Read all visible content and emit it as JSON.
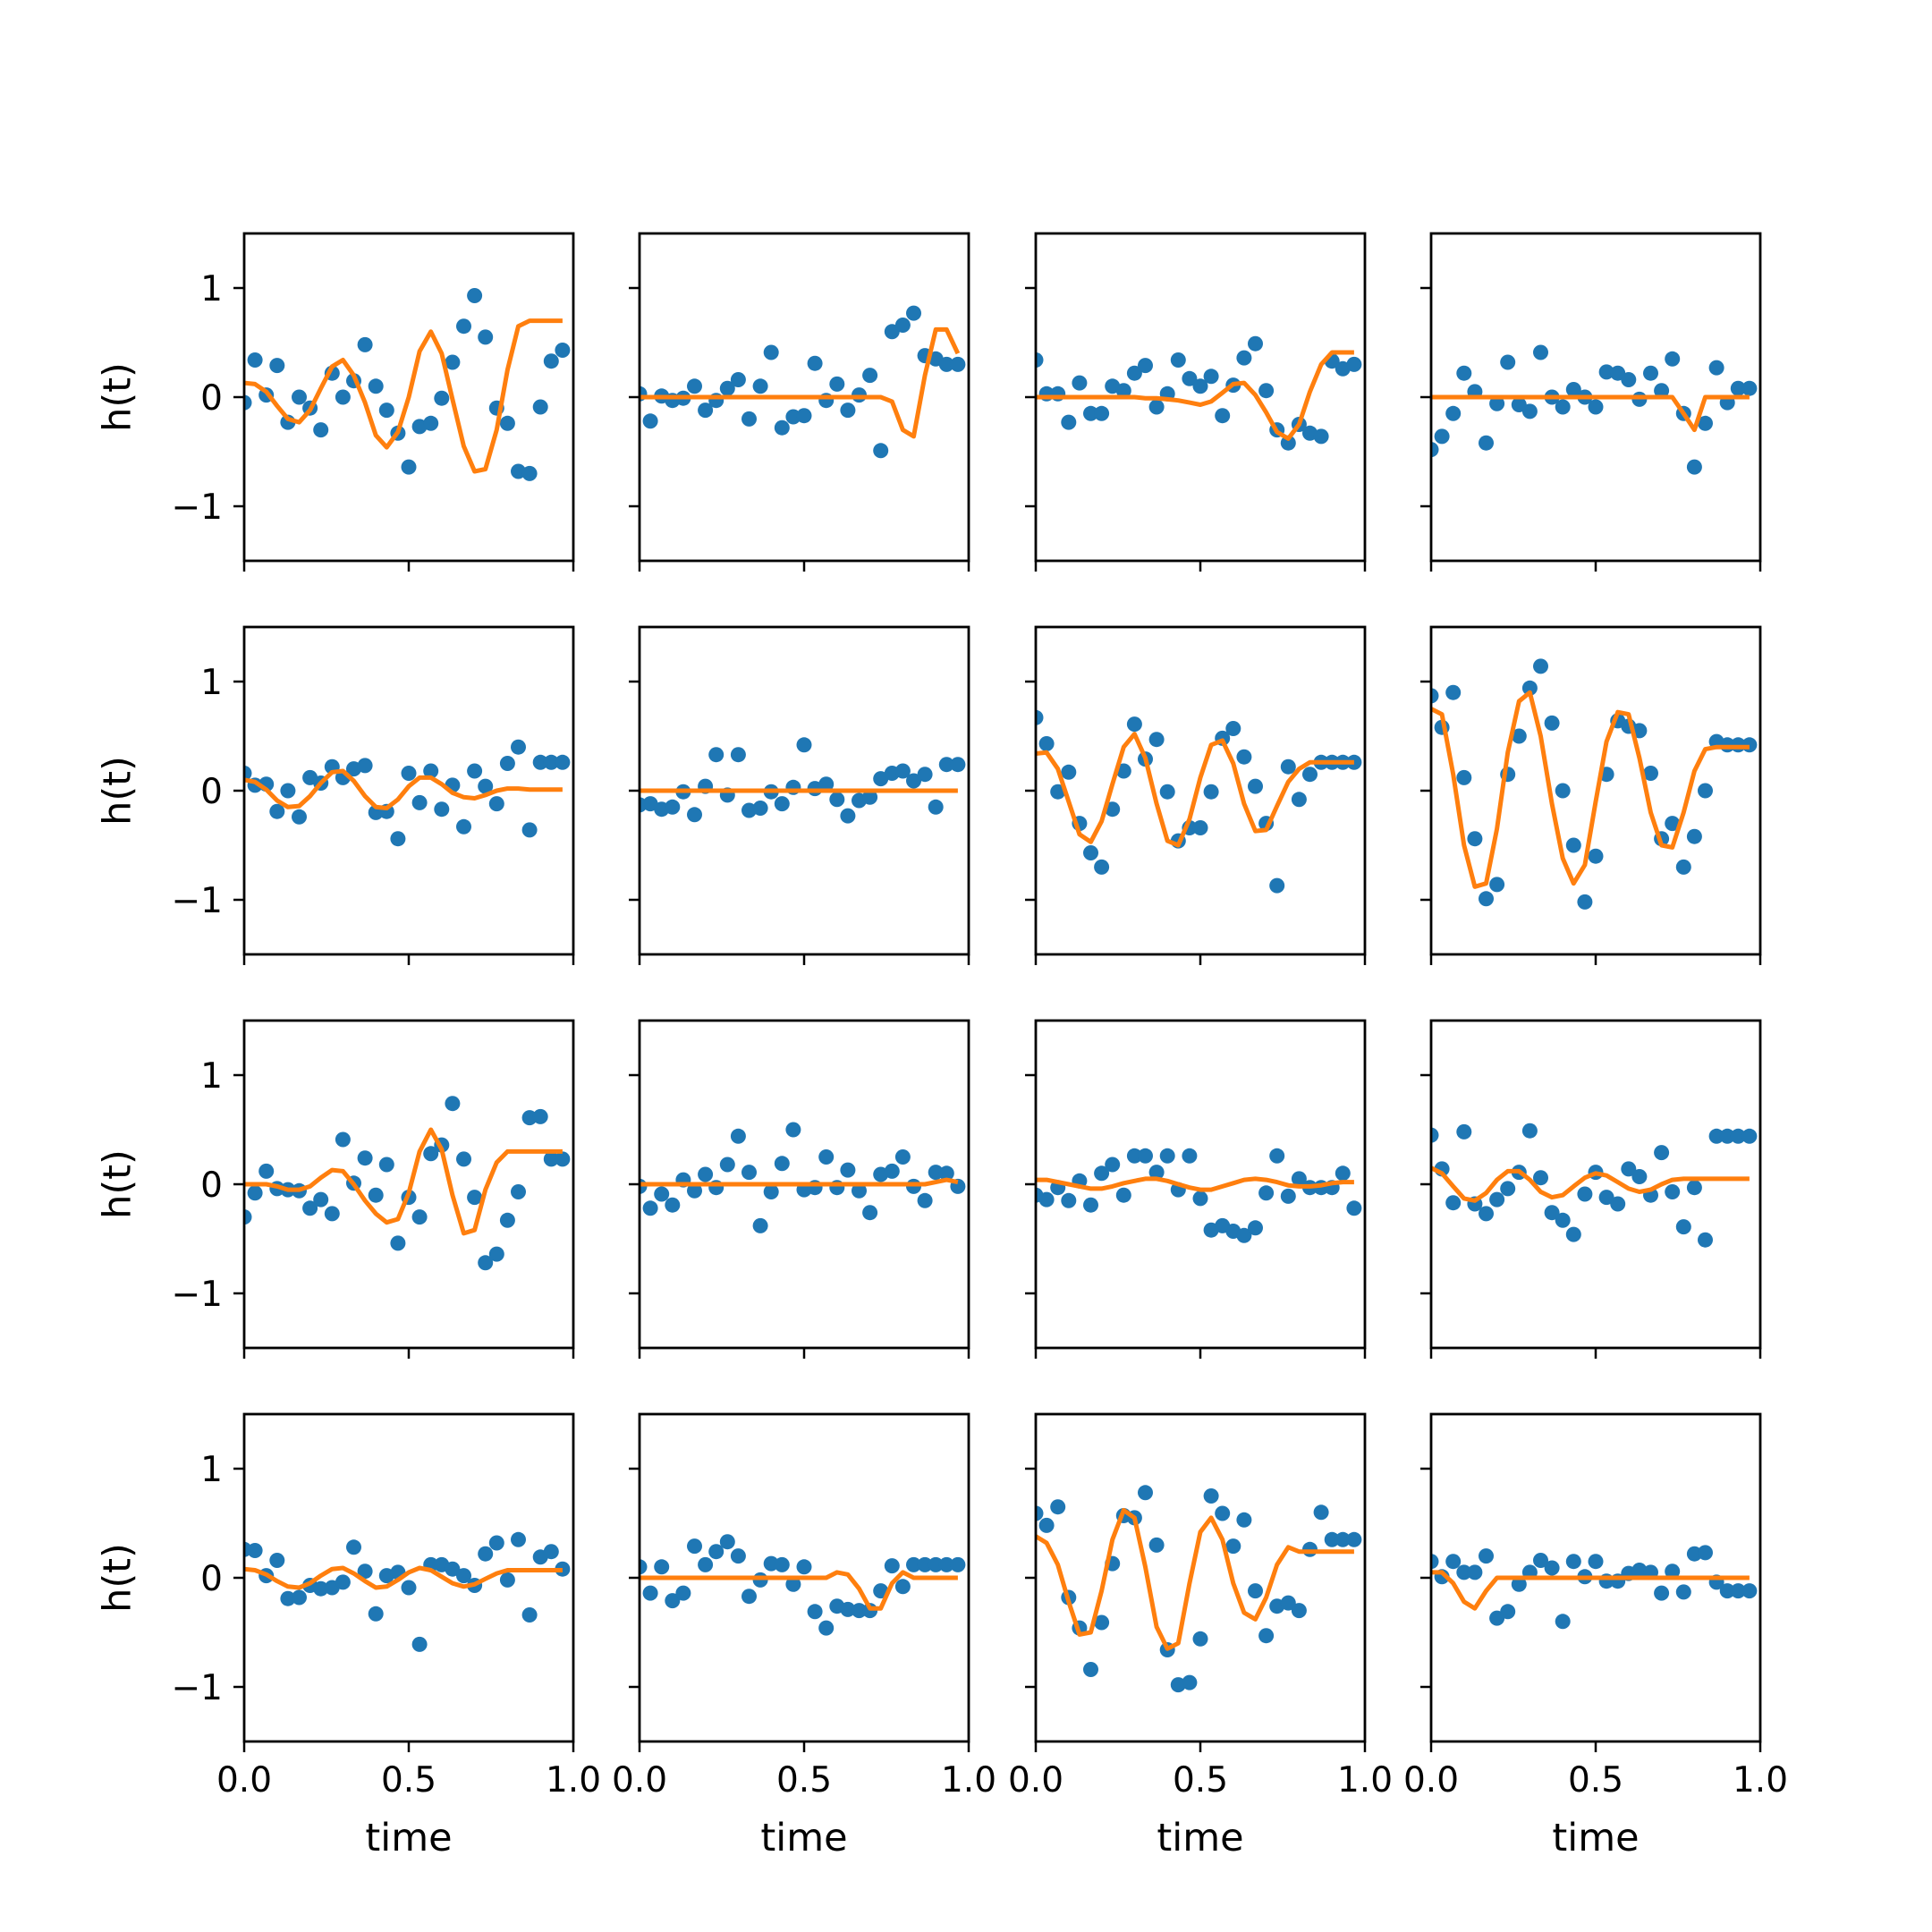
{
  "chart_data": {
    "type": "scatter",
    "layout": {
      "rows": 4,
      "cols": 4
    },
    "xlabel": "time",
    "ylabel": "h(t)",
    "xlim": [
      0.0,
      1.0
    ],
    "ylim": [
      -1.5,
      1.5
    ],
    "xticks": [
      0.0,
      0.5,
      1.0
    ],
    "xtick_labels": [
      "0.0",
      "0.5",
      "1.0"
    ],
    "yticks": [
      1,
      0,
      -1
    ],
    "ytick_labels": [
      "1",
      "0",
      "−1"
    ],
    "grid": false,
    "point_color": "#1f77b4",
    "line_color": "#ff7f0e",
    "x": [
      0.0,
      0.033,
      0.067,
      0.1,
      0.133,
      0.167,
      0.2,
      0.233,
      0.267,
      0.3,
      0.333,
      0.367,
      0.4,
      0.433,
      0.467,
      0.5,
      0.533,
      0.567,
      0.6,
      0.633,
      0.667,
      0.7,
      0.733,
      0.767,
      0.8,
      0.833,
      0.867,
      0.9,
      0.933,
      0.967
    ],
    "panels": [
      {
        "points": [
          -0.05,
          0.34,
          0.02,
          0.29,
          -0.23,
          0.0,
          -0.1,
          -0.3,
          0.22,
          0.0,
          0.15,
          0.48,
          0.1,
          -0.12,
          -0.33,
          -0.64,
          -0.27,
          -0.24,
          -0.01,
          0.32,
          0.65,
          0.93,
          0.55,
          -0.1,
          -0.24,
          -0.68,
          -0.7,
          -0.09,
          0.33,
          0.43
        ],
        "fit": [
          0.13,
          0.12,
          0.05,
          -0.08,
          -0.2,
          -0.23,
          -0.12,
          0.08,
          0.28,
          0.34,
          0.2,
          -0.05,
          -0.35,
          -0.46,
          -0.32,
          0.0,
          0.42,
          0.6,
          0.4,
          -0.02,
          -0.45,
          -0.68,
          -0.66,
          -0.3,
          0.25,
          0.65,
          0.7,
          0.7,
          0.7,
          0.7
        ]
      },
      {
        "points": [
          0.03,
          -0.22,
          0.01,
          -0.03,
          -0.01,
          0.1,
          -0.12,
          -0.03,
          0.08,
          0.16,
          -0.2,
          0.1,
          0.41,
          -0.28,
          -0.18,
          -0.17,
          0.31,
          -0.03,
          0.12,
          -0.12,
          0.02,
          0.2,
          -0.49,
          0.6,
          0.66,
          0.77,
          0.38,
          0.35,
          0.3,
          0.3
        ],
        "fit": [
          0.0,
          0.0,
          0.0,
          0.0,
          0.0,
          0.0,
          0.0,
          0.0,
          0.0,
          0.0,
          0.0,
          0.0,
          0.0,
          0.0,
          0.0,
          0.0,
          0.0,
          0.0,
          0.0,
          0.0,
          0.0,
          0.0,
          0.0,
          -0.04,
          -0.3,
          -0.36,
          0.2,
          0.62,
          0.62,
          0.4
        ]
      },
      {
        "points": [
          0.34,
          0.03,
          0.03,
          -0.23,
          0.13,
          -0.15,
          -0.15,
          0.1,
          0.06,
          0.22,
          0.29,
          -0.09,
          0.03,
          0.34,
          0.17,
          0.1,
          0.19,
          -0.17,
          0.11,
          0.36,
          0.49,
          0.06,
          -0.3,
          -0.42,
          -0.25,
          -0.33,
          -0.36,
          0.33,
          0.26,
          0.3
        ],
        "fit": [
          0.0,
          0.0,
          0.0,
          0.0,
          0.0,
          0.0,
          0.0,
          0.0,
          0.0,
          0.0,
          -0.01,
          -0.01,
          -0.02,
          -0.03,
          -0.05,
          -0.07,
          -0.04,
          0.04,
          0.12,
          0.13,
          0.02,
          -0.14,
          -0.32,
          -0.38,
          -0.25,
          0.05,
          0.3,
          0.41,
          0.41,
          0.41
        ]
      },
      {
        "points": [
          -0.48,
          -0.36,
          -0.15,
          0.22,
          0.05,
          -0.42,
          -0.06,
          0.32,
          -0.07,
          -0.13,
          0.41,
          0.0,
          -0.09,
          0.07,
          0.0,
          -0.09,
          0.23,
          0.22,
          0.16,
          -0.02,
          0.22,
          0.06,
          0.35,
          -0.15,
          -0.64,
          -0.24,
          0.27,
          -0.05,
          0.08,
          0.08
        ],
        "fit": [
          0.0,
          0.0,
          0.0,
          0.0,
          0.0,
          0.0,
          0.0,
          0.0,
          0.0,
          0.0,
          0.0,
          0.0,
          0.0,
          0.0,
          0.0,
          0.0,
          0.0,
          0.0,
          0.0,
          0.0,
          0.0,
          0.0,
          0.0,
          -0.15,
          -0.3,
          0.0,
          0.0,
          0.0,
          0.0,
          0.0
        ]
      },
      {
        "points": [
          0.16,
          0.05,
          0.06,
          -0.19,
          0.0,
          -0.24,
          0.12,
          0.07,
          0.22,
          0.12,
          0.2,
          0.23,
          -0.2,
          -0.19,
          -0.44,
          0.16,
          -0.11,
          0.18,
          -0.17,
          0.05,
          -0.33,
          0.18,
          0.04,
          -0.12,
          0.25,
          0.4,
          -0.36,
          0.26,
          0.26,
          0.26
        ],
        "fit": [
          0.1,
          0.08,
          0.01,
          -0.09,
          -0.15,
          -0.14,
          -0.05,
          0.07,
          0.17,
          0.18,
          0.09,
          -0.05,
          -0.15,
          -0.16,
          -0.08,
          0.04,
          0.12,
          0.12,
          0.06,
          -0.02,
          -0.06,
          -0.07,
          -0.04,
          0.0,
          0.02,
          0.02,
          0.01,
          0.01,
          0.01,
          0.01
        ]
      },
      {
        "points": [
          -0.13,
          -0.12,
          -0.17,
          -0.15,
          -0.01,
          -0.22,
          0.04,
          0.33,
          -0.04,
          0.33,
          -0.18,
          -0.16,
          -0.01,
          -0.12,
          0.03,
          0.42,
          0.02,
          0.06,
          -0.08,
          -0.23,
          -0.09,
          -0.06,
          0.11,
          0.16,
          0.18,
          0.09,
          0.15,
          -0.15,
          0.24,
          0.24
        ],
        "fit": [
          0.0,
          0.0,
          0.0,
          0.0,
          0.0,
          0.0,
          0.0,
          0.0,
          0.0,
          0.0,
          0.0,
          0.0,
          0.0,
          0.0,
          0.0,
          0.0,
          0.0,
          0.0,
          0.0,
          0.0,
          0.0,
          0.0,
          0.0,
          0.0,
          0.0,
          0.0,
          0.0,
          0.0,
          0.0,
          0.0
        ]
      },
      {
        "points": [
          0.67,
          0.43,
          -0.01,
          0.17,
          -0.3,
          -0.57,
          -0.7,
          -0.17,
          0.18,
          0.61,
          0.29,
          0.47,
          -0.01,
          -0.46,
          -0.34,
          -0.34,
          -0.01,
          0.48,
          0.57,
          0.31,
          0.04,
          -0.3,
          -0.87,
          0.22,
          -0.08,
          0.15,
          0.26,
          0.26,
          0.26,
          0.26
        ],
        "fit": [
          0.34,
          0.35,
          0.2,
          -0.1,
          -0.4,
          -0.47,
          -0.28,
          0.06,
          0.4,
          0.52,
          0.3,
          -0.12,
          -0.46,
          -0.5,
          -0.26,
          0.12,
          0.42,
          0.46,
          0.25,
          -0.12,
          -0.37,
          -0.36,
          -0.14,
          0.08,
          0.2,
          0.26,
          0.26,
          0.26,
          0.26,
          0.26
        ]
      },
      {
        "points": [
          0.87,
          0.58,
          0.9,
          0.12,
          -0.44,
          -0.99,
          -0.86,
          0.15,
          0.5,
          0.94,
          1.14,
          0.62,
          0.0,
          -0.5,
          -1.02,
          -0.6,
          0.15,
          0.64,
          0.59,
          0.55,
          0.16,
          -0.44,
          -0.3,
          -0.7,
          -0.42,
          0.0,
          0.45,
          0.42,
          0.42,
          0.42
        ],
        "fit": [
          0.75,
          0.7,
          0.15,
          -0.5,
          -0.88,
          -0.85,
          -0.35,
          0.35,
          0.82,
          0.9,
          0.5,
          -0.12,
          -0.62,
          -0.85,
          -0.68,
          -0.1,
          0.45,
          0.72,
          0.7,
          0.3,
          -0.2,
          -0.5,
          -0.52,
          -0.2,
          0.18,
          0.38,
          0.4,
          0.4,
          0.4,
          0.4
        ]
      },
      {
        "points": [
          -0.3,
          -0.08,
          0.12,
          -0.04,
          -0.05,
          -0.06,
          -0.22,
          -0.14,
          -0.27,
          0.41,
          0.01,
          0.24,
          -0.1,
          0.18,
          -0.54,
          -0.12,
          -0.3,
          0.28,
          0.36,
          0.74,
          0.23,
          -0.12,
          -0.72,
          -0.64,
          -0.33,
          -0.07,
          0.61,
          0.62,
          0.23,
          0.23
        ],
        "fit": [
          0.0,
          0.0,
          0.0,
          -0.02,
          -0.05,
          -0.05,
          -0.02,
          0.06,
          0.13,
          0.12,
          0.0,
          -0.15,
          -0.27,
          -0.35,
          -0.32,
          -0.08,
          0.3,
          0.5,
          0.32,
          -0.1,
          -0.45,
          -0.42,
          -0.05,
          0.2,
          0.3,
          0.3,
          0.3,
          0.3,
          0.3,
          0.3
        ]
      },
      {
        "points": [
          -0.02,
          -0.22,
          -0.09,
          -0.19,
          0.04,
          -0.06,
          0.09,
          -0.03,
          0.18,
          0.44,
          0.11,
          -0.38,
          -0.07,
          0.19,
          0.5,
          -0.05,
          -0.03,
          0.25,
          -0.03,
          0.13,
          -0.06,
          -0.26,
          0.09,
          0.12,
          0.25,
          -0.02,
          -0.15,
          0.11,
          0.1,
          -0.02
        ],
        "fit": [
          0.0,
          0.0,
          0.0,
          0.0,
          0.0,
          0.0,
          0.0,
          0.0,
          0.0,
          0.0,
          0.0,
          0.0,
          0.0,
          0.0,
          0.0,
          0.0,
          0.0,
          0.0,
          0.0,
          0.0,
          0.0,
          0.0,
          0.0,
          0.0,
          0.0,
          0.0,
          0.0,
          0.02,
          0.04,
          0.02
        ]
      },
      {
        "points": [
          -0.1,
          -0.14,
          -0.03,
          -0.15,
          0.03,
          -0.19,
          0.1,
          0.18,
          -0.1,
          0.26,
          0.26,
          0.11,
          0.26,
          -0.05,
          0.26,
          -0.13,
          -0.42,
          -0.38,
          -0.43,
          -0.47,
          -0.4,
          -0.08,
          0.26,
          -0.11,
          0.05,
          -0.03,
          -0.03,
          -0.03,
          0.1,
          -0.22
        ],
        "fit": [
          0.04,
          0.04,
          0.02,
          0.0,
          -0.02,
          -0.04,
          -0.04,
          -0.02,
          0.01,
          0.03,
          0.05,
          0.05,
          0.03,
          0.0,
          -0.03,
          -0.05,
          -0.05,
          -0.02,
          0.01,
          0.04,
          0.05,
          0.04,
          0.02,
          -0.01,
          -0.02,
          -0.02,
          -0.01,
          0.01,
          0.02,
          0.02
        ]
      },
      {
        "points": [
          0.45,
          0.14,
          -0.17,
          0.48,
          -0.18,
          -0.27,
          -0.14,
          -0.04,
          0.11,
          0.49,
          0.06,
          -0.26,
          -0.33,
          -0.46,
          -0.09,
          0.11,
          -0.12,
          -0.18,
          0.14,
          0.07,
          -0.1,
          0.29,
          -0.07,
          -0.39,
          -0.03,
          -0.51,
          0.44,
          0.44,
          0.44,
          0.44
        ],
        "fit": [
          0.15,
          0.1,
          -0.02,
          -0.13,
          -0.15,
          -0.08,
          0.04,
          0.12,
          0.12,
          0.04,
          -0.07,
          -0.12,
          -0.1,
          -0.02,
          0.06,
          0.1,
          0.08,
          0.02,
          -0.04,
          -0.07,
          -0.05,
          0.0,
          0.04,
          0.05,
          0.05,
          0.05,
          0.05,
          0.05,
          0.05,
          0.05
        ]
      },
      {
        "points": [
          0.26,
          0.25,
          0.02,
          0.16,
          -0.19,
          -0.18,
          -0.07,
          -0.1,
          -0.09,
          -0.04,
          0.28,
          0.06,
          -0.33,
          0.02,
          0.05,
          -0.09,
          -0.61,
          0.12,
          0.12,
          0.08,
          0.02,
          -0.07,
          0.22,
          0.32,
          -0.02,
          0.35,
          -0.34,
          0.19,
          0.24,
          0.08
        ],
        "fit": [
          0.08,
          0.07,
          0.03,
          -0.03,
          -0.08,
          -0.09,
          -0.05,
          0.02,
          0.08,
          0.09,
          0.04,
          -0.03,
          -0.09,
          -0.08,
          -0.02,
          0.05,
          0.09,
          0.07,
          0.01,
          -0.05,
          -0.08,
          -0.06,
          -0.01,
          0.04,
          0.07,
          0.07,
          0.07,
          0.07,
          0.07,
          0.07
        ]
      },
      {
        "points": [
          0.1,
          -0.14,
          0.1,
          -0.21,
          -0.14,
          0.29,
          0.12,
          0.24,
          0.33,
          0.2,
          -0.17,
          -0.02,
          0.13,
          0.12,
          -0.06,
          0.1,
          -0.31,
          -0.46,
          -0.26,
          -0.29,
          -0.3,
          -0.3,
          -0.12,
          0.11,
          -0.08,
          0.12,
          0.12,
          0.12,
          0.12,
          0.12
        ],
        "fit": [
          0.0,
          0.0,
          0.0,
          0.0,
          0.0,
          0.0,
          0.0,
          0.0,
          0.0,
          0.0,
          0.0,
          0.0,
          0.0,
          0.0,
          0.0,
          0.0,
          0.0,
          0.0,
          0.05,
          0.03,
          -0.1,
          -0.28,
          -0.28,
          -0.05,
          0.05,
          0.0,
          0.0,
          0.0,
          0.0,
          0.0
        ]
      },
      {
        "points": [
          0.59,
          0.48,
          0.65,
          -0.18,
          -0.46,
          -0.84,
          -0.41,
          0.13,
          0.57,
          0.55,
          0.78,
          0.3,
          -0.66,
          -0.98,
          -0.96,
          -0.56,
          0.75,
          0.59,
          0.29,
          0.53,
          -0.12,
          -0.53,
          -0.26,
          -0.23,
          -0.3,
          0.26,
          0.6,
          0.35,
          0.35,
          0.35
        ],
        "fit": [
          0.38,
          0.32,
          0.12,
          -0.22,
          -0.52,
          -0.5,
          -0.12,
          0.35,
          0.62,
          0.55,
          0.1,
          -0.45,
          -0.65,
          -0.6,
          -0.05,
          0.42,
          0.55,
          0.35,
          -0.05,
          -0.32,
          -0.38,
          -0.18,
          0.12,
          0.28,
          0.24,
          0.24,
          0.24,
          0.24,
          0.24,
          0.24
        ]
      },
      {
        "points": [
          0.15,
          0.01,
          0.15,
          0.05,
          0.05,
          0.2,
          -0.37,
          -0.31,
          -0.06,
          0.05,
          0.16,
          0.09,
          -0.4,
          0.15,
          0.01,
          0.15,
          -0.03,
          -0.03,
          0.04,
          0.07,
          0.05,
          -0.14,
          0.06,
          -0.13,
          0.22,
          0.23,
          -0.04,
          -0.12,
          -0.12,
          -0.12
        ],
        "fit": [
          0.05,
          0.05,
          -0.05,
          -0.22,
          -0.28,
          -0.12,
          0.0,
          0.0,
          0.0,
          0.0,
          0.0,
          0.0,
          0.0,
          0.0,
          0.0,
          0.0,
          0.0,
          0.0,
          0.0,
          0.0,
          0.0,
          0.0,
          0.0,
          0.0,
          0.0,
          0.0,
          0.0,
          0.0,
          0.0,
          0.0
        ]
      }
    ]
  }
}
